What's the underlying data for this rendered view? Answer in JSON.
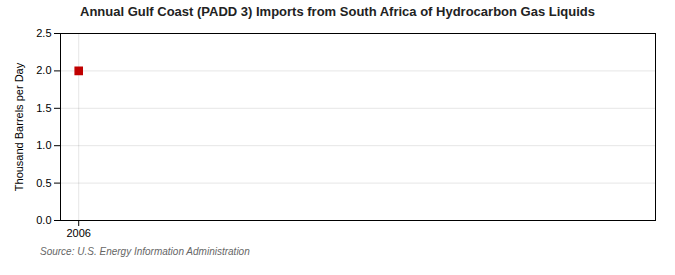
{
  "chart_data": {
    "type": "scatter",
    "title": "Annual Gulf Coast (PADD 3) Imports from South Africa of Hydrocarbon Gas Liquids",
    "ylabel": "Thousand Barrels per Day",
    "annotations": [
      "Source: U.S. Energy Information Administration"
    ],
    "x": [
      2006
    ],
    "values": [
      2.0
    ],
    "color": "#c00000",
    "marker": "square",
    "xlim": [
      2005.4,
      2025
    ],
    "xticks": [
      2006
    ],
    "ylim": [
      0.0,
      2.5
    ],
    "yticks": [
      {
        "value": 0.0,
        "label": "0.0"
      },
      0.5,
      {
        "value": 1.0,
        "label": "1.0"
      },
      1.5,
      {
        "value": 2.0,
        "label": "2.0"
      },
      2.5
    ],
    "grid": true
  }
}
